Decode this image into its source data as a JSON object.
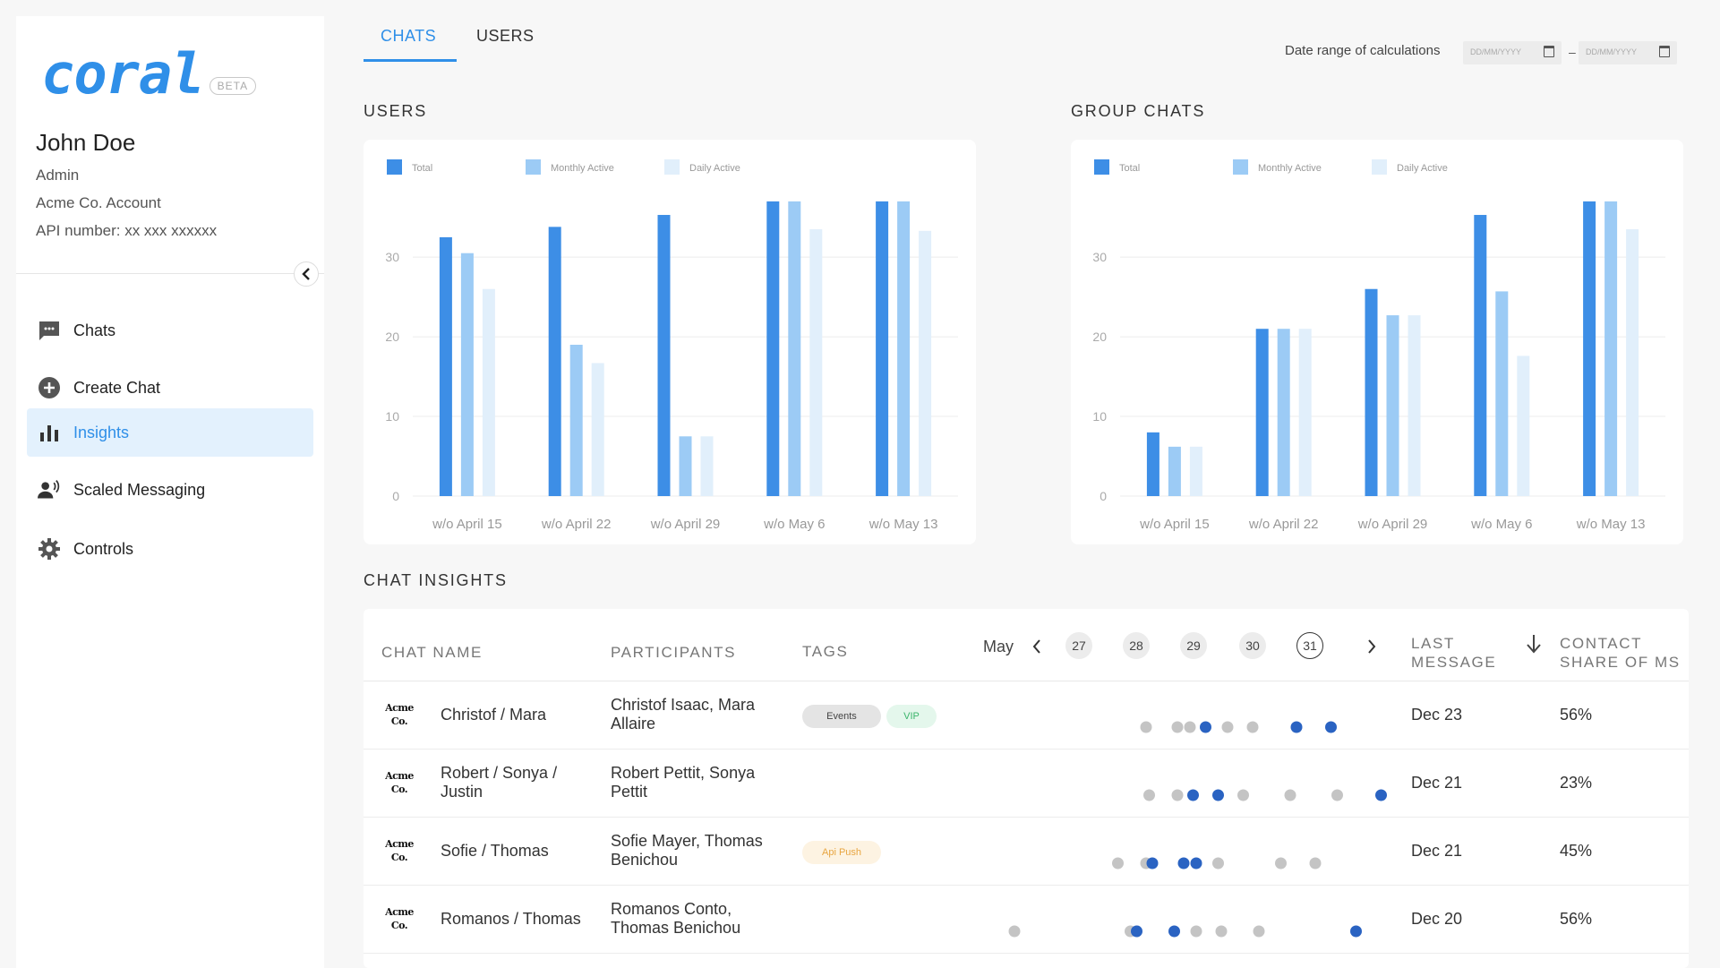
{
  "app": {
    "logo": "coral",
    "beta": "BETA"
  },
  "user": {
    "name": "John Doe",
    "role": "Admin",
    "account": "Acme Co. Account",
    "api": "API number: xx xxx xxxxxx"
  },
  "nav": [
    {
      "label": "Chats",
      "icon": "chat-icon"
    },
    {
      "label": "Create Chat",
      "icon": "add-circle-icon"
    },
    {
      "label": "Insights",
      "icon": "bar-chart-icon",
      "active": true
    },
    {
      "label": "Scaled Messaging",
      "icon": "broadcast-user-icon"
    },
    {
      "label": "Controls",
      "icon": "gear-icon"
    }
  ],
  "tabs": {
    "chats": "CHATS",
    "users": "USERS"
  },
  "date_range": {
    "label": "Date range of calculations",
    "start_placeholder": "DD/MM/YYYY",
    "end_placeholder": "DD/MM/YYYY",
    "separator": "–"
  },
  "sections": {
    "users": "USERS",
    "group_chats": "GROUP CHATS",
    "chat_insights": "CHAT INSIGHTS"
  },
  "colors": {
    "accent": "#2f8fe8",
    "total": "#3d8ee6",
    "monthly": "#9ccbf5",
    "daily": "#e1effb",
    "dot_blue": "#2a63c2",
    "dot_grey": "#c4c4c4"
  },
  "chart_data": [
    {
      "type": "bar",
      "title": "USERS",
      "categories": [
        "w/o April 15",
        "w/o April 22",
        "w/o April 29",
        "w/o May 6",
        "w/o May 13"
      ],
      "series": [
        {
          "name": "Total",
          "values": [
            32.5,
            33.8,
            35.3,
            37,
            37
          ]
        },
        {
          "name": "Monthly Active",
          "values": [
            30.5,
            19,
            7.5,
            37,
            37
          ]
        },
        {
          "name": "Daily Active",
          "values": [
            26,
            16.7,
            7.5,
            33.5,
            33.3
          ]
        }
      ],
      "yticks": [
        0,
        10,
        20,
        30
      ],
      "ylim": [
        0,
        38
      ],
      "grid": true,
      "legend": "top-left"
    },
    {
      "type": "bar",
      "title": "GROUP CHATS",
      "categories": [
        "w/o April 15",
        "w/o April 22",
        "w/o April 29",
        "w/o May 6",
        "w/o May 13"
      ],
      "series": [
        {
          "name": "Total",
          "values": [
            8,
            21,
            26,
            35.3,
            37
          ]
        },
        {
          "name": "Monthly Active",
          "values": [
            6.2,
            21,
            22.7,
            25.7,
            37
          ]
        },
        {
          "name": "Daily Active",
          "values": [
            6.2,
            21,
            22.7,
            17.6,
            33.5
          ]
        }
      ],
      "yticks": [
        0,
        10,
        20,
        30
      ],
      "ylim": [
        0,
        38
      ],
      "grid": true,
      "legend": "top-left"
    }
  ],
  "table": {
    "headers": {
      "chat_name": "CHAT NAME",
      "participants": "PARTICIPANTS",
      "tags": "TAGS",
      "last_message": "LAST\nMESSAGE",
      "contact_share": "CONTACT\nSHARE OF MS"
    },
    "calendar": {
      "month": "May",
      "days": [
        "27",
        "28",
        "29",
        "30",
        "31"
      ],
      "selected": "31"
    },
    "logo_text": "Acme\nCo.",
    "rows": [
      {
        "chat": "Christof / Mara",
        "participants": "Christof Isaac, Mara\nAllaire",
        "tags": [
          {
            "label": "Events",
            "bg": "#e4e4e4",
            "fg": "#444"
          },
          {
            "label": "VIP",
            "bg": "#e4f7ec",
            "fg": "#3bb56b"
          }
        ],
        "activity": [
          [
            "g",
            0.42
          ],
          [
            "g",
            0.47
          ],
          [
            "g",
            0.49
          ],
          [
            "b",
            0.515
          ],
          [
            "g",
            0.55
          ],
          [
            "g",
            0.59
          ],
          [
            "b",
            0.66
          ],
          [
            "b",
            0.715
          ]
        ],
        "last": "Dec 23",
        "share": "56%"
      },
      {
        "chat": "Robert / Sonya /\nJustin",
        "participants": "Robert Pettit, Sonya\nPettit",
        "tags": [],
        "activity": [
          [
            "g",
            0.425
          ],
          [
            "g",
            0.47
          ],
          [
            "b",
            0.495
          ],
          [
            "b",
            0.535
          ],
          [
            "g",
            0.575
          ],
          [
            "g",
            0.65
          ],
          [
            "g",
            0.725
          ],
          [
            "b",
            0.795
          ]
        ],
        "last": "Dec 21",
        "share": "23%"
      },
      {
        "chat": "Sofie / Thomas",
        "participants": "Sofie Mayer, Thomas\nBenichou",
        "tags": [
          {
            "label": "Api Push",
            "bg": "#fdf3e2",
            "fg": "#e8a540"
          }
        ],
        "activity": [
          [
            "g",
            0.375
          ],
          [
            "g",
            0.42
          ],
          [
            "b",
            0.43
          ],
          [
            "b",
            0.48
          ],
          [
            "b",
            0.5
          ],
          [
            "g",
            0.535
          ],
          [
            "g",
            0.635
          ],
          [
            "g",
            0.69
          ]
        ],
        "last": "Dec 21",
        "share": "45%"
      },
      {
        "chat": "Romanos / Thomas",
        "participants": "Romanos Conto,\nThomas Benichou",
        "tags": [],
        "activity": [
          [
            "g",
            0.21
          ],
          [
            "g",
            0.395
          ],
          [
            "b",
            0.405
          ],
          [
            "b",
            0.465
          ],
          [
            "g",
            0.5
          ],
          [
            "g",
            0.54
          ],
          [
            "g",
            0.6
          ],
          [
            "b",
            0.755
          ]
        ],
        "last": "Dec 20",
        "share": "56%"
      }
    ]
  }
}
